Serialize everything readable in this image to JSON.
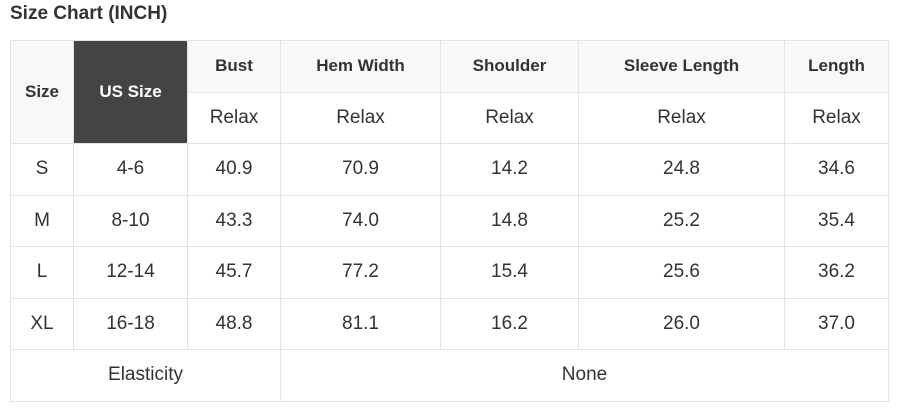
{
  "title": "Size Chart (INCH)",
  "header": {
    "size": "Size",
    "us_size": "US Size",
    "columns": [
      "Bust",
      "Hem Width",
      "Shoulder",
      "Sleeve Length",
      "Length"
    ],
    "fit": [
      "Relax",
      "Relax",
      "Relax",
      "Relax",
      "Relax"
    ]
  },
  "rows": [
    {
      "size": "S",
      "us": "4-6",
      "values": [
        "40.9",
        "70.9",
        "14.2",
        "24.8",
        "34.6"
      ]
    },
    {
      "size": "M",
      "us": "8-10",
      "values": [
        "43.3",
        "74.0",
        "14.8",
        "25.2",
        "35.4"
      ]
    },
    {
      "size": "L",
      "us": "12-14",
      "values": [
        "45.7",
        "77.2",
        "15.4",
        "25.6",
        "36.2"
      ]
    },
    {
      "size": "XL",
      "us": "16-18",
      "values": [
        "48.8",
        "81.1",
        "16.2",
        "26.0",
        "37.0"
      ]
    }
  ],
  "elasticity": {
    "label": "Elasticity",
    "value": "None"
  }
}
